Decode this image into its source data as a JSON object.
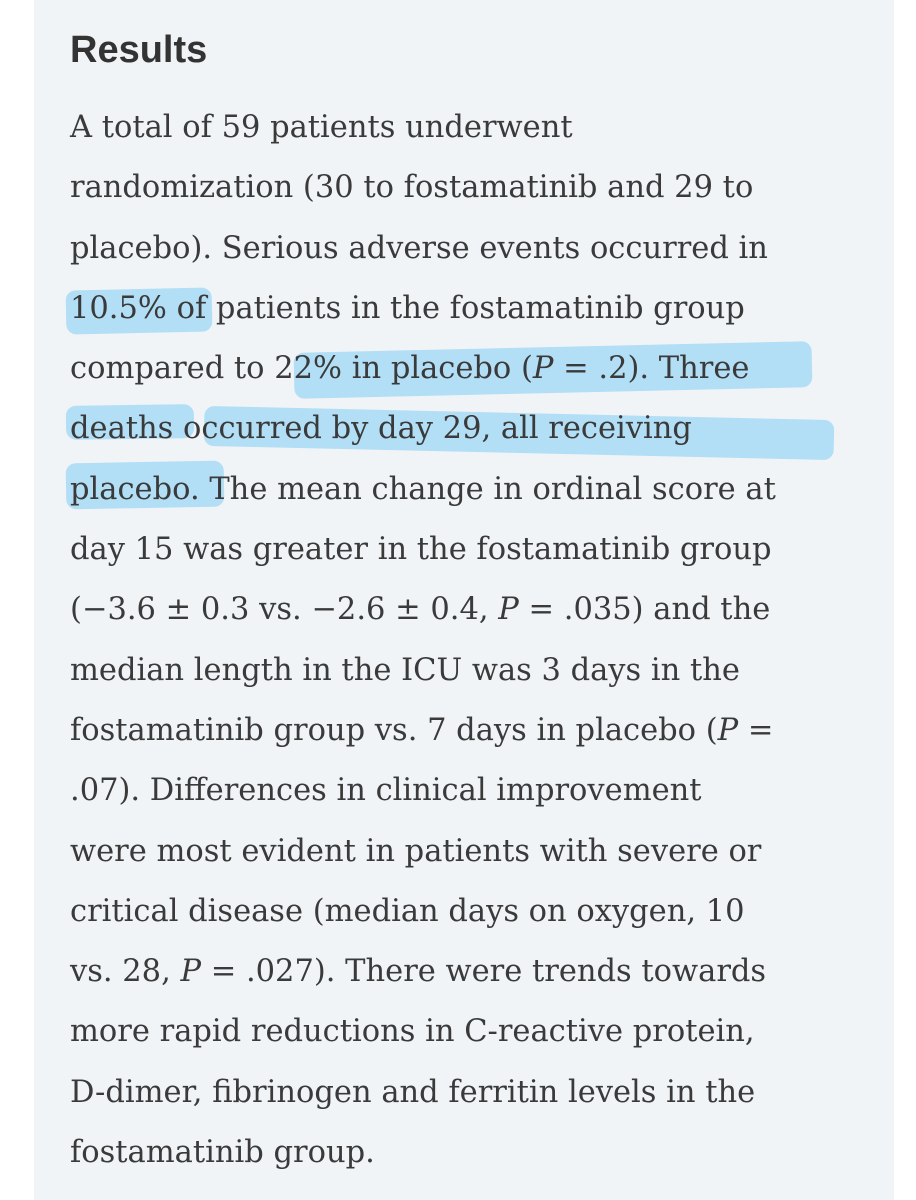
{
  "section": {
    "heading": "Results"
  },
  "lines": {
    "l1": "A total of 59 patients underwent",
    "l2": "randomization (30 to fostamatinib and 29 to",
    "l3": "placebo). Serious adverse events occurred in",
    "l4": "10.5% of patients in the fostamatinib group",
    "l5a": "compared to 22% in placebo (",
    "l5b": "P",
    "l5c": " = .2). Three",
    "l6": "deaths occurred by day 29, all receiving",
    "l7": "placebo. The mean change in ordinal score at",
    "l8": "day 15 was greater in the fostamatinib group",
    "l9a": "(−3.6 ± 0.3 vs. −2.6 ± 0.4, ",
    "l9b": "P",
    "l9c": " = .035) and the",
    "l10": "median length in the ICU was 3 days in the",
    "l11a": "fostamatinib group vs. 7 days in placebo (",
    "l11b": "P",
    "l11c": " =",
    "l12": ".07). Differences in clinical improvement",
    "l13": "were most evident in patients with severe or",
    "l14": "critical disease (median days on oxygen, 10",
    "l15a": "vs. 28, ",
    "l15b": "P",
    "l15c": " = .027). There were trends towards",
    "l16": "more rapid reductions in C-reactive protein,",
    "l17": "D-dimer, fibrinogen and ferritin levels in the",
    "l18": "fostamatinib group."
  },
  "colors": {
    "background": "#f1f4f7",
    "text": "#3a3a3a",
    "heading": "#333333",
    "highlight": "#6cc8f5"
  }
}
